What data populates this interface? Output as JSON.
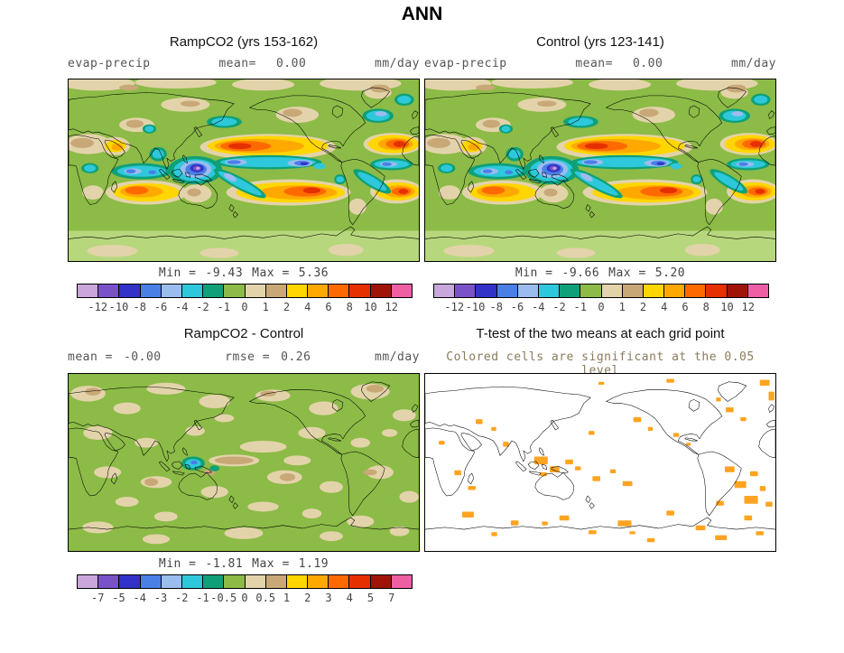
{
  "chart_data": {
    "type": "map",
    "layout": "2x2-panel-figure",
    "figure_title": "ANN",
    "panels": [
      {
        "id": "rampco2",
        "position": "top-left",
        "title": "RampCO2 (yrs 153-162)",
        "variable": "evap-precip",
        "mean_label": "mean=",
        "mean": "0.00",
        "units": "mm/day",
        "min_label": "Min =",
        "min": "-9.43",
        "max_label": "Max =",
        "max": "5.36",
        "colorbar_ticks": [
          "-12",
          "-10",
          "-8",
          "-6",
          "-4",
          "-2",
          "-1",
          "0",
          "1",
          "2",
          "4",
          "6",
          "8",
          "10",
          "12"
        ],
        "colorbar_colors": [
          "#C9A7DC",
          "#7A52C7",
          "#3232C8",
          "#4A7FE6",
          "#9BBCEE",
          "#2EC8DC",
          "#0FA078",
          "#8CBB47",
          "#E3D3AA",
          "#C9A878",
          "#FFD600",
          "#FFA900",
          "#FF6A00",
          "#E63000",
          "#A01408",
          "#EE5FA4"
        ]
      },
      {
        "id": "control",
        "position": "top-right",
        "title": "Control (yrs 123-141)",
        "variable": "evap-precip",
        "mean_label": "mean=",
        "mean": "0.00",
        "units": "mm/day",
        "min_label": "Min =",
        "min": "-9.66",
        "max_label": "Max =",
        "max": "5.20"
      },
      {
        "id": "difference",
        "position": "bottom-left",
        "title": "RampCO2 - Control",
        "mean_label": "mean =",
        "mean": "-0.00",
        "rmse_label": "rmse =",
        "rmse": "0.26",
        "units": "mm/day",
        "min_label": "Min =",
        "min": "-1.81",
        "max_label": "Max =",
        "max": "1.19",
        "colorbar_ticks": [
          "-7",
          "-5",
          "-4",
          "-3",
          "-2",
          "-1",
          "-0.5",
          "0",
          "0.5",
          "1",
          "2",
          "3",
          "4",
          "5",
          "7"
        ],
        "colorbar_colors": [
          "#C9A7DC",
          "#7A52C7",
          "#3232C8",
          "#4A7FE6",
          "#9BBCEE",
          "#2EC8DC",
          "#0FA078",
          "#8CBB47",
          "#E3D3AA",
          "#C9A878",
          "#FFD600",
          "#FFA900",
          "#FF6A00",
          "#E63000",
          "#A01408",
          "#EE5FA4"
        ]
      },
      {
        "id": "ttest",
        "position": "bottom-right",
        "title": "T-test of the two means at each grid point",
        "subtitle": "Colored cells are significant at the 0.05 level"
      }
    ]
  },
  "colors": {
    "significance": "#FFA420",
    "subtitle_text": "#8A7B5C",
    "map_base_green": "#8CBB47"
  }
}
